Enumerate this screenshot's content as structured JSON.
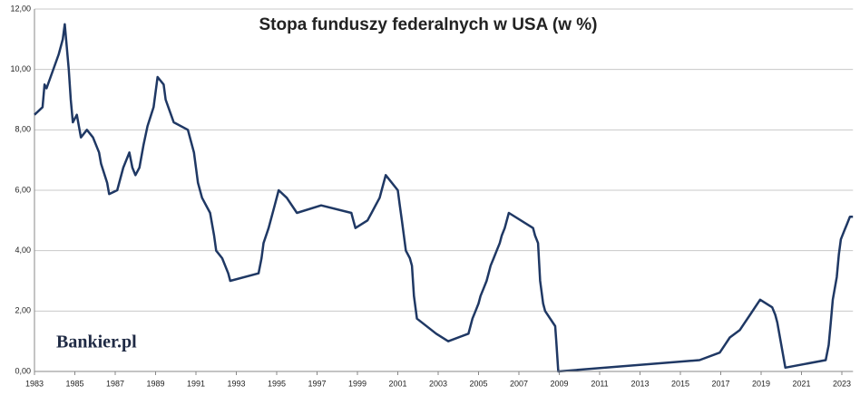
{
  "logo": "Bankier.pl",
  "chart_data": {
    "type": "line",
    "title": "Stopa funduszy federalnych w USA (w %)",
    "color": "#1f3864",
    "grid": true,
    "xlim": [
      1983,
      2023.55
    ],
    "xticks": [
      1983,
      1985,
      1987,
      1989,
      1991,
      1993,
      1995,
      1997,
      1999,
      2001,
      2003,
      2005,
      2007,
      2009,
      2011,
      2013,
      2015,
      2017,
      2019,
      2021,
      2023
    ],
    "ylim": [
      0,
      12
    ],
    "yticks": [
      {
        "value": 0,
        "label": "0,00"
      },
      {
        "value": 2,
        "label": "2,00"
      },
      {
        "value": 4,
        "label": "4,00"
      },
      {
        "value": 6,
        "label": "6,00"
      },
      {
        "value": 8,
        "label": "8,00"
      },
      {
        "value": 10,
        "label": "10,00"
      },
      {
        "value": 12,
        "label": "12,00"
      }
    ],
    "x": [
      1983.0,
      1983.4,
      1983.5,
      1983.6,
      1984.2,
      1984.4,
      1984.5,
      1984.7,
      1984.8,
      1984.9,
      1985.1,
      1985.3,
      1985.6,
      1985.9,
      1986.2,
      1986.3,
      1986.6,
      1986.7,
      1987.1,
      1987.4,
      1987.7,
      1987.85,
      1988.0,
      1988.2,
      1988.4,
      1988.6,
      1988.9,
      1989.1,
      1989.4,
      1989.5,
      1989.9,
      1990.6,
      1990.9,
      1991.0,
      1991.1,
      1991.3,
      1991.7,
      1991.9,
      1992.0,
      1992.3,
      1992.6,
      1992.7,
      1994.1,
      1994.25,
      1994.35,
      1994.6,
      1994.9,
      1995.1,
      1995.5,
      1996.0,
      1997.2,
      1998.7,
      1998.8,
      1998.9,
      1999.5,
      1999.7,
      1999.9,
      2000.1,
      2000.2,
      2000.4,
      2001.0,
      2001.1,
      2001.2,
      2001.3,
      2001.4,
      2001.6,
      2001.7,
      2001.75,
      2001.8,
      2001.9,
      2001.95,
      2002.9,
      2003.5,
      2004.5,
      2004.6,
      2004.7,
      2004.85,
      2005.0,
      2005.1,
      2005.25,
      2005.4,
      2005.5,
      2005.6,
      2005.75,
      2005.9,
      2006.05,
      2006.15,
      2006.3,
      2006.5,
      2007.7,
      2007.8,
      2007.95,
      2008.05,
      2008.2,
      2008.3,
      2008.8,
      2008.85,
      2008.95,
      2015.95,
      2016.95,
      2017.2,
      2017.45,
      2017.95,
      2018.2,
      2018.45,
      2018.7,
      2018.95,
      2019.55,
      2019.7,
      2019.8,
      2020.2,
      2022.2,
      2022.35,
      2022.45,
      2022.55,
      2022.75,
      2022.85,
      2022.95,
      2023.1,
      2023.25,
      2023.4,
      2023.55
    ],
    "values": [
      8.5,
      8.75,
      9.5,
      9.375,
      10.5,
      11.0,
      11.5,
      10.0,
      9.0,
      8.25,
      8.5,
      7.75,
      8.0,
      7.75,
      7.25,
      6.875,
      6.25,
      5.875,
      6.0,
      6.75,
      7.25,
      6.75,
      6.5,
      6.75,
      7.5,
      8.125,
      8.75,
      9.75,
      9.5,
      9.0,
      8.25,
      8.0,
      7.25,
      6.75,
      6.25,
      5.75,
      5.25,
      4.5,
      4.0,
      3.75,
      3.25,
      3.0,
      3.25,
      3.75,
      4.25,
      4.75,
      5.5,
      6.0,
      5.75,
      5.25,
      5.5,
      5.25,
      5.0,
      4.75,
      5.0,
      5.25,
      5.5,
      5.75,
      6.0,
      6.5,
      6.0,
      5.5,
      5.0,
      4.5,
      4.0,
      3.75,
      3.5,
      3.0,
      2.5,
      2.0,
      1.75,
      1.25,
      1.0,
      1.25,
      1.5,
      1.75,
      2.0,
      2.25,
      2.5,
      2.75,
      3.0,
      3.25,
      3.5,
      3.75,
      4.0,
      4.25,
      4.5,
      4.75,
      5.25,
      4.75,
      4.5,
      4.25,
      3.0,
      2.25,
      2.0,
      1.5,
      1.0,
      0,
      0.375,
      0.625,
      0.875,
      1.125,
      1.375,
      1.625,
      1.875,
      2.125,
      2.375,
      2.125,
      1.875,
      1.625,
      0.125,
      0.375,
      0.875,
      1.625,
      2.375,
      3.125,
      3.875,
      4.375,
      4.625,
      4.875,
      5.125,
      5.125
    ]
  }
}
